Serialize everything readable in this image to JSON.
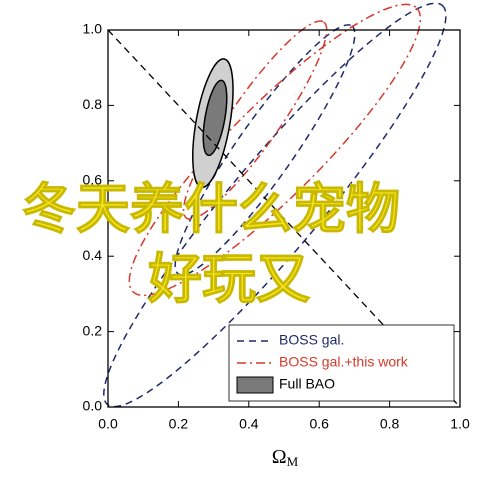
{
  "chart_data": {
    "type": "ellipse",
    "xlabel": {
      "main": "Ω",
      "sub": "M"
    },
    "xlim": [
      0,
      1
    ],
    "ylim": [
      0,
      1
    ],
    "xticks": [
      {
        "value": 0,
        "label": "0.0"
      },
      0.2,
      0.4,
      0.6,
      0.8,
      {
        "value": 1,
        "label": "1.0"
      }
    ],
    "yticks": [
      {
        "value": 0,
        "label": "0.0"
      },
      0.2,
      0.4,
      0.6,
      0.8,
      {
        "value": 1,
        "label": "1.0"
      }
    ],
    "reference_line": {
      "x": [
        0,
        1
      ],
      "y": [
        1,
        0
      ],
      "color": "#000000"
    },
    "series": [
      {
        "name": "BOSS gal.",
        "color": "#1f2a6b",
        "style": "dash",
        "ellipses": [
          {
            "cx": 0.474,
            "cy": 0.536,
            "major": 0.74,
            "minor": 0.13,
            "angle": 50
          },
          {
            "cx": 0.446,
            "cy": 0.682,
            "major": 0.43,
            "minor": 0.08,
            "angle": 55
          }
        ]
      },
      {
        "name": "BOSS gal.+this work",
        "color": "#d6392b",
        "style": "dashdot",
        "ellipses": [
          {
            "cx": 0.474,
            "cy": 0.682,
            "major": 0.57,
            "minor": 0.13,
            "angle": 45
          },
          {
            "cx": 0.418,
            "cy": 0.761,
            "major": 0.34,
            "minor": 0.07,
            "angle": 55
          }
        ]
      },
      {
        "name": "Full BAO",
        "color": "#7a7a7a",
        "style": "fill",
        "ellipses": [
          {
            "cx": 0.298,
            "cy": 0.753,
            "major": 0.185,
            "minor": 0.048,
            "angle": 80
          },
          {
            "cx": 0.304,
            "cy": 0.767,
            "major": 0.108,
            "minor": 0.028,
            "angle": 80
          }
        ]
      }
    ],
    "legend": "lower right",
    "overlay_text": [
      "冬天养什么宠物",
      "好玩又"
    ]
  }
}
